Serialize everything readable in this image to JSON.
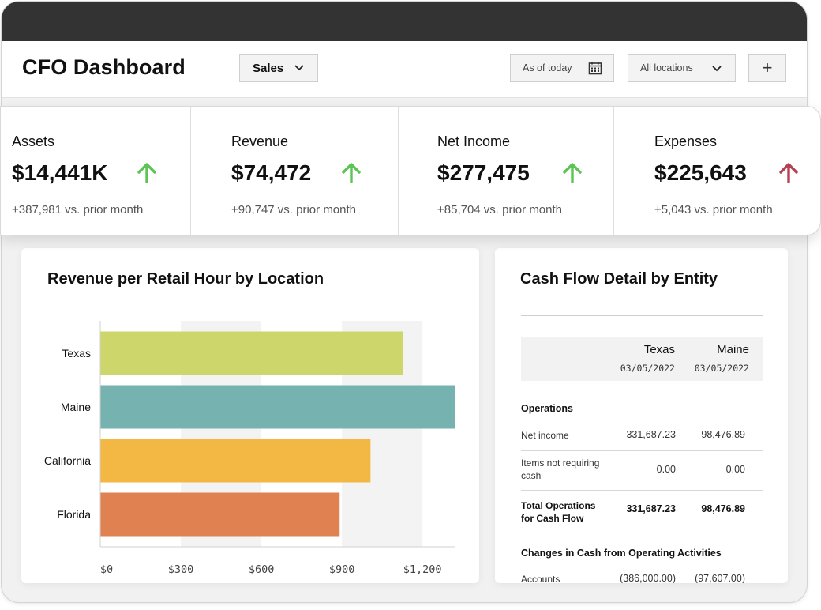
{
  "header": {
    "title": "CFO Dashboard",
    "report_select": "Sales",
    "date_filter": "As of today",
    "location_filter": "All locations",
    "add_label": "+"
  },
  "kpis": [
    {
      "label": "Assets",
      "value": "$14,441K",
      "delta": "+387,981 vs. prior month",
      "trend": "up"
    },
    {
      "label": "Revenue",
      "value": "$74,472",
      "delta": "+90,747 vs. prior month",
      "trend": "up"
    },
    {
      "label": "Net Income",
      "value": "$277,475",
      "delta": "+85,704 vs. prior month",
      "trend": "up"
    },
    {
      "label": "Expenses",
      "value": "$225,643",
      "delta": "+5,043 vs. prior month",
      "trend": "up"
    }
  ],
  "colors": {
    "up_good": "#5cc455",
    "up_bad": "#b54252",
    "bar_texas": "#cdd66a",
    "bar_maine": "#76b2b0",
    "bar_california": "#f3b744",
    "bar_florida": "#e08152"
  },
  "revenue_chart": {
    "title": "Revenue per Retail Hour by Location"
  },
  "chart_data": {
    "type": "bar",
    "orientation": "horizontal",
    "title": "Revenue per Retail Hour by Location",
    "categories": [
      "Texas",
      "Maine",
      "California",
      "Florida"
    ],
    "values": [
      1125,
      1320,
      1005,
      890
    ],
    "xlim": [
      0,
      1320
    ],
    "xticks": [
      0,
      300,
      600,
      900,
      1200
    ],
    "xtick_labels": [
      "$0",
      "$300",
      "$600",
      "$900",
      "$1,200"
    ],
    "xlabel": "",
    "ylabel": "",
    "grid": "alternating vertical bands"
  },
  "cash_flow": {
    "title": "Cash Flow Detail by Entity",
    "entities": [
      {
        "name": "Texas",
        "date": "03/05/2022"
      },
      {
        "name": "Maine",
        "date": "03/05/2022"
      }
    ],
    "operations_heading": "Operations",
    "rows": [
      {
        "label": "Net income",
        "texas": "331,687.23",
        "maine": "98,476.89"
      },
      {
        "label": "Items not requiring cash",
        "texas": "0.00",
        "maine": "0.00"
      },
      {
        "label": "Total Operations for Cash Flow",
        "texas": "331,687.23",
        "maine": "98,476.89"
      }
    ],
    "changes_heading": "Changes in Cash from Operating Activities",
    "changes_rows": [
      {
        "label": "Accounts",
        "texas": "(386,000.00)",
        "maine": "(97,607.00)"
      }
    ]
  }
}
